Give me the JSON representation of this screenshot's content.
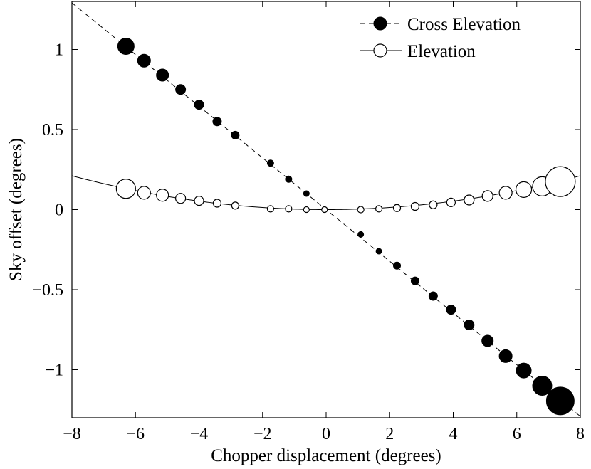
{
  "chart_data": {
    "type": "scatter",
    "title": "",
    "xlabel": "Chopper displacement (degrees)",
    "ylabel": "Sky offset (degrees)",
    "xlim": [
      -8,
      8
    ],
    "ylim": [
      -1.3,
      1.3
    ],
    "xticks": [
      -8,
      -6,
      -4,
      -2,
      0,
      2,
      4,
      6,
      8
    ],
    "xtick_labels": [
      "−8",
      "−6",
      "−4",
      "−2",
      "0",
      "2",
      "4",
      "6",
      "8"
    ],
    "yticks": [
      -1,
      -0.5,
      0,
      0.5,
      1
    ],
    "ytick_labels": [
      "−1",
      "−0.5",
      "0",
      "0.5",
      "1"
    ],
    "grid": false,
    "legend_position": "top-right",
    "series": [
      {
        "name": "Cross Elevation",
        "marker": "filled-circle",
        "line_style": "dashed",
        "fit": {
          "kind": "linear",
          "slope": -0.1614,
          "intercept": 0.0,
          "x_range": [
            -8,
            8
          ]
        },
        "x": [
          -6.3,
          -5.73,
          -5.15,
          -4.58,
          -4.0,
          -3.43,
          -2.86,
          -1.75,
          -1.18,
          -0.62,
          -0.05,
          1.09,
          1.66,
          2.23,
          2.8,
          3.37,
          3.93,
          4.5,
          5.08,
          5.65,
          6.22,
          6.8,
          7.37
        ],
        "y": [
          1.02,
          0.93,
          0.84,
          0.75,
          0.655,
          0.55,
          0.465,
          0.29,
          0.19,
          0.1,
          0.0,
          -0.155,
          -0.26,
          -0.35,
          -0.445,
          -0.54,
          -0.625,
          -0.72,
          -0.82,
          -0.915,
          -1.005,
          -1.1,
          -1.195
        ],
        "marker_sizes": [
          23,
          18,
          17,
          14,
          13,
          12,
          11,
          9,
          9,
          8,
          8,
          8,
          8,
          10,
          11,
          12,
          13,
          14,
          16,
          18,
          21,
          27,
          39
        ]
      },
      {
        "name": "Elevation",
        "marker": "open-circle",
        "line_style": "solid",
        "fit": {
          "kind": "quadratic",
          "a": 0.0033,
          "b": 0.0,
          "c": 0.0,
          "x_range": [
            -8,
            8
          ]
        },
        "x": [
          -6.3,
          -5.73,
          -5.15,
          -4.58,
          -4.0,
          -3.43,
          -2.86,
          -1.75,
          -1.18,
          -0.62,
          -0.05,
          1.09,
          1.66,
          2.23,
          2.8,
          3.37,
          3.93,
          4.5,
          5.08,
          5.65,
          6.22,
          6.8,
          7.37
        ],
        "y": [
          0.13,
          0.105,
          0.09,
          0.07,
          0.055,
          0.04,
          0.025,
          0.005,
          0.005,
          0.0,
          0.0,
          0.0,
          0.005,
          0.01,
          0.02,
          0.03,
          0.045,
          0.06,
          0.085,
          0.105,
          0.125,
          0.145,
          0.175
        ],
        "marker_sizes": [
          27,
          18,
          17,
          14,
          13,
          11,
          10,
          9,
          9,
          8,
          8,
          9,
          9,
          10,
          11,
          11,
          12,
          14,
          15,
          18,
          22,
          27,
          42
        ]
      }
    ]
  }
}
